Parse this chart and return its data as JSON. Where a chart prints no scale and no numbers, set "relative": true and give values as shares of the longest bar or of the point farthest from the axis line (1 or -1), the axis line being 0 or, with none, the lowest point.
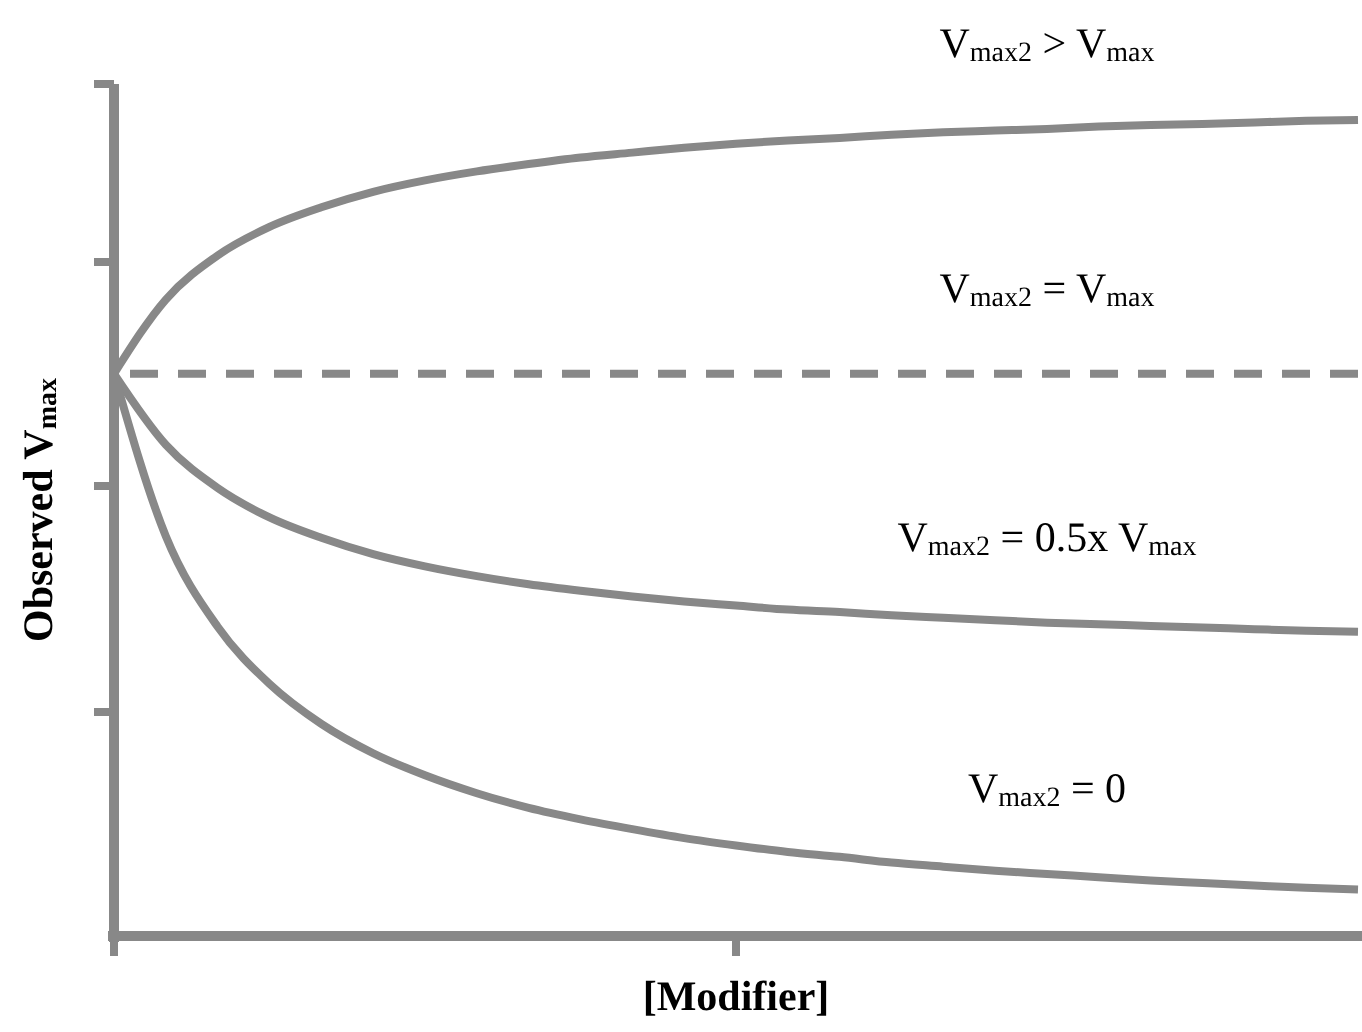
{
  "chart_data": {
    "type": "line",
    "relative": true,
    "xlabel": "[Modifier]",
    "ylabel": "Observed V$_{max}$",
    "marker": "none",
    "categories": [
      null,
      null,
      null,
      null,
      null,
      null,
      null,
      null,
      null,
      null,
      null,
      null,
      null,
      null,
      null,
      null,
      null,
      null,
      null,
      null,
      null,
      null,
      null,
      null,
      null
    ],
    "series": [
      {
        "name": "V$_{max2}$ > V$_{max}$",
        "color": "#888888",
        "line_style": "solid",
        "values": [
          0.689,
          0.78,
          0.834,
          0.869,
          0.893,
          0.912,
          0.926,
          0.937,
          0.946,
          0.954,
          0.96,
          0.966,
          0.971,
          0.975,
          0.978,
          0.982,
          0.985,
          0.987,
          0.989,
          0.992,
          0.994,
          0.995,
          0.997,
          0.999,
          1.0
        ]
      },
      {
        "name": "V$_{max2}$ = V$_{max}$",
        "color": "#888888",
        "line_style": "dashed",
        "values": [
          0.689,
          0.689,
          0.689,
          0.689,
          0.689,
          0.689,
          0.689,
          0.689,
          0.689,
          0.689,
          0.689,
          0.689,
          0.689,
          0.689,
          0.689,
          0.689,
          0.689,
          0.689,
          0.689,
          0.689,
          0.689,
          0.689,
          0.689,
          0.689,
          0.689
        ]
      },
      {
        "name": "V$_{max2}$ = 0.5x V$_{max}$",
        "color": "#888888",
        "line_style": "solid",
        "values": [
          0.689,
          0.602,
          0.549,
          0.513,
          0.488,
          0.468,
          0.453,
          0.441,
          0.431,
          0.423,
          0.416,
          0.41,
          0.405,
          0.4,
          0.397,
          0.393,
          0.39,
          0.387,
          0.384,
          0.382,
          0.38,
          0.378,
          0.376,
          0.374,
          0.373
        ]
      },
      {
        "name": "V$_{max2}$ = 0",
        "color": "#888888",
        "line_style": "solid",
        "values": [
          0.689,
          0.49,
          0.379,
          0.309,
          0.26,
          0.224,
          0.197,
          0.175,
          0.157,
          0.143,
          0.131,
          0.12,
          0.111,
          0.103,
          0.097,
          0.09,
          0.085,
          0.08,
          0.076,
          0.072,
          0.068,
          0.065,
          0.062,
          0.059,
          0.057
        ]
      }
    ]
  }
}
